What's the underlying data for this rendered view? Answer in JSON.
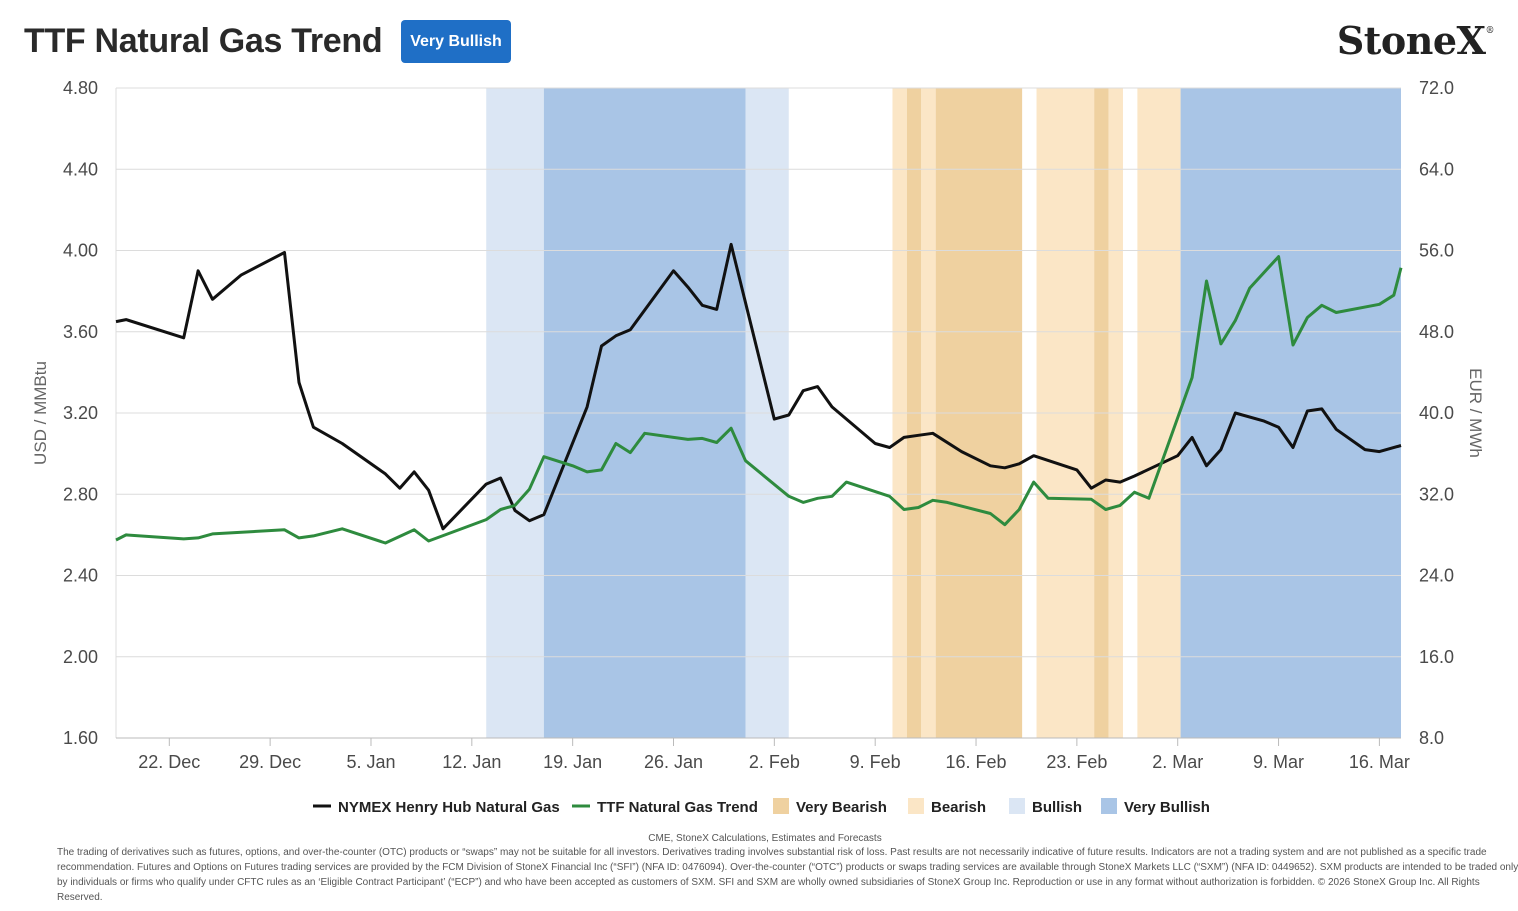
{
  "header": {
    "title": "TTF Natural Gas Trend",
    "badge": "Very Bullish",
    "logo": "StoneX",
    "logo_mark": "®"
  },
  "colors": {
    "very_bearish": "#efd1a0",
    "bearish": "#fbe6c6",
    "bullish": "#dbe6f4",
    "very_bullish": "#a9c5e6",
    "henry_hub": "#111111",
    "ttf": "#2e8b3e",
    "badge": "#1f6fc6"
  },
  "chart_data": {
    "type": "line",
    "title": "TTF Natural Gas Trend",
    "x_ticks": [
      "22. Dec",
      "29. Dec",
      "5. Jan",
      "12. Jan",
      "19. Jan",
      "26. Jan",
      "2. Feb",
      "9. Feb",
      "16. Feb",
      "23. Feb",
      "2. Mar",
      "9. Mar",
      "16. Mar"
    ],
    "x_tick_days": [
      3,
      10,
      17,
      24,
      31,
      38,
      45,
      52,
      59,
      66,
      73,
      80,
      87
    ],
    "xlim_days": [
      -0.7,
      88.5
    ],
    "day_zero": "19 Dec",
    "y_left": {
      "label": "USD / MMBtu",
      "lim": [
        1.6,
        4.8
      ],
      "ticks": [
        "1.60",
        "2.00",
        "2.40",
        "2.80",
        "3.20",
        "3.60",
        "4.00",
        "4.40",
        "4.80"
      ]
    },
    "y_right": {
      "label": "EUR / MWh",
      "lim": [
        8.0,
        72.0
      ],
      "ticks": [
        "8.0",
        "16.0",
        "24.0",
        "32.0",
        "40.0",
        "48.0",
        "56.0",
        "64.0",
        "72.0"
      ]
    },
    "grid": true,
    "legend_position": "bottom",
    "legend": [
      "NYMEX Henry Hub Natural Gas",
      "TTF Natural Gas Trend",
      "Very Bearish",
      "Bearish",
      "Bullish",
      "Very Bullish"
    ],
    "bands": [
      {
        "from": 25.0,
        "to": 29.0,
        "type": "bullish"
      },
      {
        "from": 29.0,
        "to": 43.0,
        "type": "very_bullish"
      },
      {
        "from": 43.0,
        "to": 46.0,
        "type": "bullish"
      },
      {
        "from": 53.2,
        "to": 54.2,
        "type": "bearish"
      },
      {
        "from": 54.2,
        "to": 55.2,
        "type": "very_bearish"
      },
      {
        "from": 55.2,
        "to": 56.2,
        "type": "bearish"
      },
      {
        "from": 56.2,
        "to": 62.2,
        "type": "very_bearish"
      },
      {
        "from": 63.2,
        "to": 67.2,
        "type": "bearish"
      },
      {
        "from": 67.2,
        "to": 68.2,
        "type": "very_bearish"
      },
      {
        "from": 68.2,
        "to": 69.2,
        "type": "bearish"
      },
      {
        "from": 70.2,
        "to": 73.2,
        "type": "bearish"
      },
      {
        "from": 73.2,
        "to": 88.5,
        "type": "very_bullish"
      }
    ],
    "series": [
      {
        "name": "NYMEX Henry Hub Natural Gas",
        "axis": "left",
        "points": [
          [
            -0.7,
            3.65
          ],
          [
            0,
            3.66
          ],
          [
            4,
            3.57
          ],
          [
            5,
            3.9
          ],
          [
            6,
            3.76
          ],
          [
            8,
            3.88
          ],
          [
            11,
            3.99
          ],
          [
            12,
            3.35
          ],
          [
            13,
            3.13
          ],
          [
            15,
            3.05
          ],
          [
            18,
            2.9
          ],
          [
            19,
            2.83
          ],
          [
            20,
            2.91
          ],
          [
            21,
            2.82
          ],
          [
            22,
            2.63
          ],
          [
            25,
            2.85
          ],
          [
            26,
            2.88
          ],
          [
            27,
            2.72
          ],
          [
            28,
            2.67
          ],
          [
            29,
            2.7
          ],
          [
            32,
            3.23
          ],
          [
            33,
            3.53
          ],
          [
            34,
            3.58
          ],
          [
            35,
            3.61
          ],
          [
            38,
            3.9
          ],
          [
            39,
            3.82
          ],
          [
            40,
            3.73
          ],
          [
            41,
            3.71
          ],
          [
            42,
            4.03
          ],
          [
            45,
            3.17
          ],
          [
            46,
            3.19
          ],
          [
            47,
            3.31
          ],
          [
            48,
            3.33
          ],
          [
            49,
            3.23
          ],
          [
            52,
            3.05
          ],
          [
            53,
            3.03
          ],
          [
            54,
            3.08
          ],
          [
            55,
            3.09
          ],
          [
            56,
            3.1
          ],
          [
            58,
            3.01
          ],
          [
            60,
            2.94
          ],
          [
            61,
            2.93
          ],
          [
            62,
            2.95
          ],
          [
            63,
            2.99
          ],
          [
            66,
            2.92
          ],
          [
            67,
            2.83
          ],
          [
            68,
            2.87
          ],
          [
            69,
            2.86
          ],
          [
            70,
            2.89
          ],
          [
            73,
            2.99
          ],
          [
            74,
            3.08
          ],
          [
            75,
            2.94
          ],
          [
            76,
            3.02
          ],
          [
            77,
            3.2
          ],
          [
            79,
            3.16
          ],
          [
            80,
            3.13
          ],
          [
            81,
            3.03
          ],
          [
            82,
            3.21
          ],
          [
            83,
            3.22
          ],
          [
            84,
            3.12
          ],
          [
            86,
            3.02
          ],
          [
            87,
            3.01
          ],
          [
            88.5,
            3.04
          ]
        ]
      },
      {
        "name": "TTF Natural Gas Trend",
        "axis": "right",
        "points": [
          [
            -0.7,
            27.5
          ],
          [
            0,
            28.0
          ],
          [
            4,
            27.6
          ],
          [
            5,
            27.7
          ],
          [
            6,
            28.1
          ],
          [
            11,
            28.5
          ],
          [
            12,
            27.7
          ],
          [
            13,
            27.9
          ],
          [
            15,
            28.6
          ],
          [
            18,
            27.2
          ],
          [
            20,
            28.5
          ],
          [
            21,
            27.4
          ],
          [
            25,
            29.5
          ],
          [
            26,
            30.5
          ],
          [
            27,
            30.9
          ],
          [
            28,
            32.5
          ],
          [
            29,
            35.7
          ],
          [
            31,
            34.8
          ],
          [
            32,
            34.2
          ],
          [
            33,
            34.4
          ],
          [
            34,
            37.0
          ],
          [
            35,
            36.1
          ],
          [
            36,
            38.0
          ],
          [
            38,
            37.6
          ],
          [
            39,
            37.4
          ],
          [
            40,
            37.5
          ],
          [
            41,
            37.1
          ],
          [
            42,
            38.5
          ],
          [
            43,
            35.3
          ],
          [
            46,
            31.8
          ],
          [
            47,
            31.2
          ],
          [
            48,
            31.6
          ],
          [
            49,
            31.8
          ],
          [
            50,
            33.2
          ],
          [
            53,
            31.8
          ],
          [
            54,
            30.5
          ],
          [
            55,
            30.7
          ],
          [
            56,
            31.4
          ],
          [
            57,
            31.2
          ],
          [
            60,
            30.1
          ],
          [
            61,
            29.0
          ],
          [
            62,
            30.5
          ],
          [
            63,
            33.2
          ],
          [
            64,
            31.6
          ],
          [
            67,
            31.5
          ],
          [
            68,
            30.5
          ],
          [
            69,
            30.9
          ],
          [
            70,
            32.2
          ],
          [
            71,
            31.6
          ],
          [
            74,
            43.5
          ],
          [
            75,
            53.0
          ],
          [
            76,
            46.8
          ],
          [
            77,
            49.1
          ],
          [
            78,
            52.3
          ],
          [
            80,
            55.4
          ],
          [
            81,
            46.7
          ],
          [
            82,
            49.4
          ],
          [
            83,
            50.6
          ],
          [
            84,
            49.9
          ],
          [
            87,
            50.7
          ],
          [
            88,
            51.6
          ],
          [
            88.5,
            54.3
          ]
        ]
      }
    ]
  },
  "footer": {
    "source": "CME, StoneX Calculations, Estimates and Forecasts",
    "disclaimer": "The trading of derivatives such as futures, options, and over-the-counter (OTC) products or “swaps” may not be suitable for all investors. Derivatives trading involves substantial risk of loss. Past results are not necessarily indicative of future results. Indicators are not a trading system and are not published as a specific trade recommendation. Futures and Options on Futures trading services are provided by the FCM Division of StoneX Financial Inc (“SFI”) (NFA ID: 0476094). Over-the-counter (“OTC”) products or swaps trading services are available through StoneX Markets LLC (“SXM”) (NFA ID: 0449652). SXM products are intended to be traded only by individuals or firms who qualify under CFTC rules as an ‘Eligible Contract Participant’ (“ECP”) and who have been accepted as customers of SXM. SFI and SXM are wholly owned subsidiaries of StoneX Group Inc. Reproduction or use in any format without authorization is forbidden. © 2026 StoneX Group Inc. All Rights Reserved."
  }
}
